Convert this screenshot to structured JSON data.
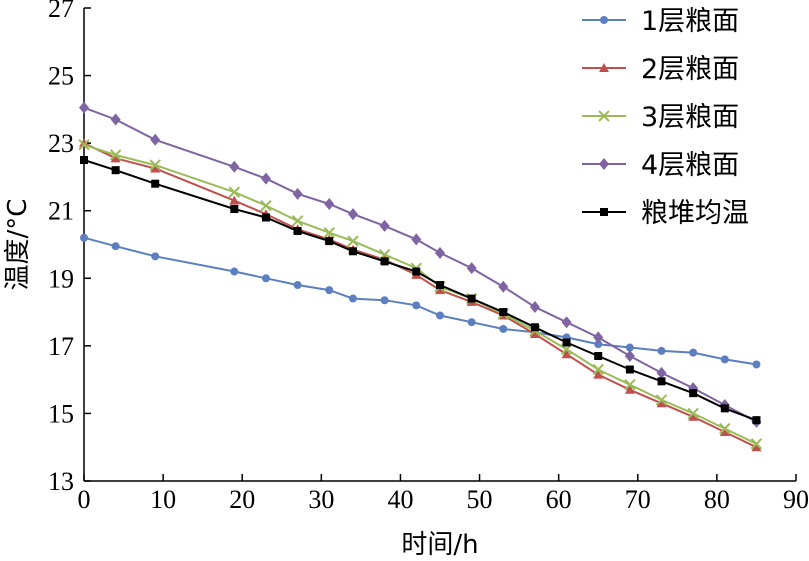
{
  "chart_data": {
    "type": "line",
    "title": "",
    "xlabel": "时间/h",
    "ylabel": "温度/°C",
    "xlim": [
      0,
      90
    ],
    "ylim": [
      13,
      27
    ],
    "xticks": [
      0,
      10,
      20,
      30,
      40,
      50,
      60,
      70,
      80,
      90
    ],
    "yticks": [
      13,
      15,
      17,
      19,
      21,
      23,
      25,
      27
    ],
    "grid": false,
    "legend": "top-right",
    "x": [
      0,
      4,
      9,
      19,
      23,
      27,
      31,
      34,
      38,
      42,
      45,
      49,
      53,
      57,
      61,
      65,
      69,
      73,
      77,
      81,
      85
    ],
    "series": [
      {
        "name": "1层粮面",
        "color": "#5b7fbf",
        "marker": "circle",
        "values": [
          20.2,
          19.95,
          19.65,
          19.2,
          19.0,
          18.8,
          18.65,
          18.4,
          18.35,
          18.2,
          17.9,
          17.7,
          17.5,
          17.4,
          17.25,
          17.05,
          16.95,
          16.85,
          16.8,
          16.6,
          16.45
        ]
      },
      {
        "name": "2层粮面",
        "color": "#c0504d",
        "marker": "triangle",
        "values": [
          23.0,
          22.55,
          22.25,
          21.3,
          20.9,
          20.45,
          20.15,
          19.85,
          19.55,
          19.1,
          18.65,
          18.3,
          17.9,
          17.35,
          16.75,
          16.15,
          15.7,
          15.3,
          14.9,
          14.45,
          14.0
        ]
      },
      {
        "name": "3层粮面",
        "color": "#9bbb59",
        "marker": "x",
        "values": [
          22.95,
          22.65,
          22.35,
          21.55,
          21.15,
          20.7,
          20.35,
          20.1,
          19.7,
          19.3,
          18.75,
          18.4,
          17.95,
          17.45,
          16.9,
          16.3,
          15.85,
          15.4,
          15.0,
          14.55,
          14.1
        ]
      },
      {
        "name": "4层粮面",
        "color": "#8064a2",
        "marker": "diamond",
        "values": [
          24.05,
          23.7,
          23.1,
          22.3,
          21.95,
          21.5,
          21.2,
          20.9,
          20.55,
          20.15,
          19.75,
          19.3,
          18.75,
          18.15,
          17.7,
          17.25,
          16.7,
          16.2,
          15.75,
          15.25,
          14.75
        ]
      },
      {
        "name": "粮堆均温",
        "color": "#000000",
        "marker": "square",
        "values": [
          22.5,
          22.2,
          21.8,
          21.05,
          20.8,
          20.4,
          20.1,
          19.8,
          19.5,
          19.2,
          18.8,
          18.4,
          18.0,
          17.55,
          17.1,
          16.7,
          16.3,
          15.95,
          15.6,
          15.15,
          14.8
        ]
      }
    ]
  }
}
